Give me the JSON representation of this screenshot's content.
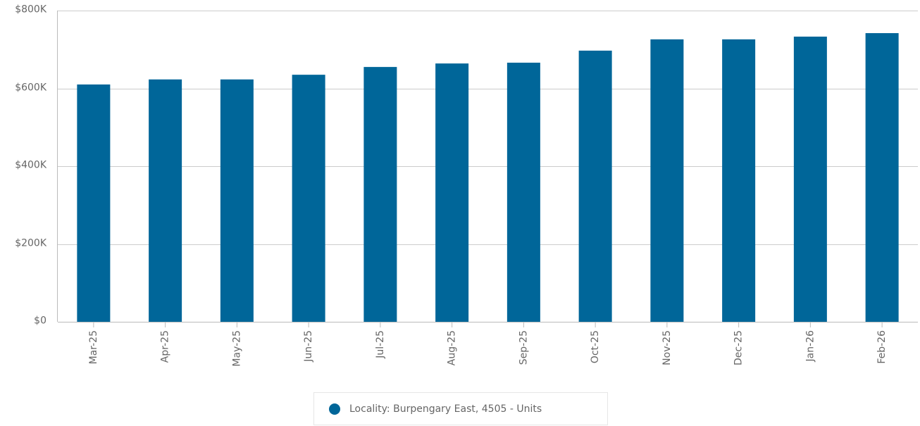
{
  "chart_data": {
    "type": "bar",
    "categories": [
      "Mar-25",
      "Apr-25",
      "May-25",
      "Jun-25",
      "Jul-25",
      "Aug-25",
      "Sep-25",
      "Oct-25",
      "Nov-25",
      "Dec-25",
      "Jan-26",
      "Feb-26"
    ],
    "series": [
      {
        "name": "Locality: Burpengary East, 4505 - Units",
        "color": "#006699",
        "values": [
          610000,
          623000,
          623000,
          635000,
          655000,
          664000,
          666000,
          697000,
          726000,
          726000,
          733000,
          742000
        ]
      }
    ],
    "ylim": [
      0,
      800000
    ],
    "yticks": [
      {
        "value": 0,
        "label": "$0"
      },
      {
        "value": 200000,
        "label": "$200K"
      },
      {
        "value": 400000,
        "label": "$400K"
      },
      {
        "value": 600000,
        "label": "$600K"
      },
      {
        "value": 800000,
        "label": "$800K"
      }
    ],
    "grid": true,
    "legend": "bottom"
  }
}
